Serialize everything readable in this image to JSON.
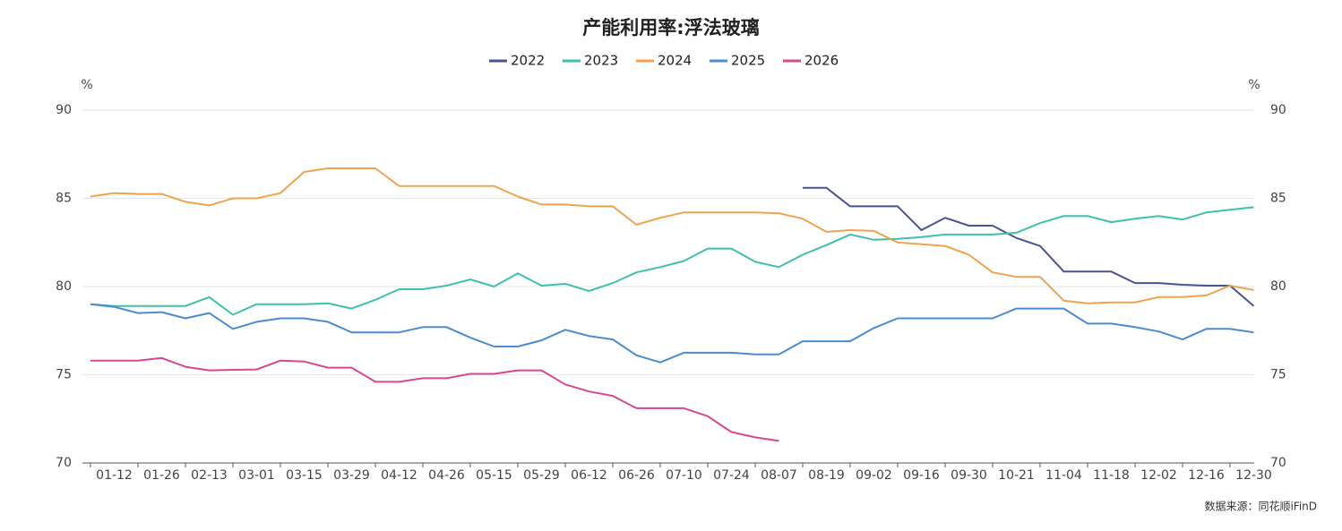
{
  "chart_data": {
    "type": "line",
    "title": "产能利用率:浮法玻璃",
    "y_unit": "%",
    "y2_unit": "%",
    "source": "数据来源：同花顺iFinD",
    "categories": [
      null,
      "01-12",
      null,
      "01-26",
      null,
      "02-13",
      null,
      "03-01",
      null,
      "03-15",
      null,
      "03-29",
      null,
      "04-12",
      null,
      "04-26",
      null,
      "05-15",
      null,
      "05-29",
      null,
      "06-12",
      null,
      "06-26",
      null,
      "07-10",
      null,
      "07-24",
      null,
      "08-07",
      null,
      "08-19",
      null,
      "09-02",
      null,
      "09-16",
      null,
      "09-30",
      null,
      "10-21",
      null,
      "11-04",
      null,
      "11-18",
      null,
      "12-02",
      null,
      "12-16",
      null,
      "12-30"
    ],
    "series": [
      {
        "name": "2022",
        "color": "#4a5391",
        "values": [
          null,
          null,
          null,
          null,
          null,
          null,
          null,
          null,
          null,
          null,
          null,
          null,
          null,
          null,
          null,
          null,
          null,
          null,
          null,
          null,
          null,
          null,
          null,
          null,
          null,
          null,
          null,
          null,
          null,
          null,
          85.6,
          85.6,
          84.55,
          84.55,
          84.55,
          83.2,
          83.9,
          83.45,
          83.45,
          82.75,
          82.3,
          80.85,
          80.85,
          80.85,
          80.2,
          80.2,
          80.1,
          80.05,
          80.05,
          78.9
        ]
      },
      {
        "name": "2023",
        "color": "#3fbfad",
        "values": [
          79.0,
          78.9,
          78.9,
          78.9,
          78.9,
          79.4,
          78.4,
          79.0,
          79.0,
          79.0,
          79.05,
          78.75,
          79.25,
          79.85,
          79.85,
          80.05,
          80.4,
          80.0,
          80.75,
          80.05,
          80.15,
          79.75,
          80.2,
          80.8,
          81.1,
          81.45,
          82.15,
          82.15,
          81.4,
          81.1,
          81.8,
          82.35,
          82.95,
          82.65,
          82.7,
          82.8,
          82.95,
          82.95,
          82.95,
          83.05,
          83.6,
          84.0,
          84.0,
          83.65,
          83.85,
          84.0,
          83.8,
          84.2,
          84.35,
          84.5
        ]
      },
      {
        "name": "2024",
        "color": "#f0a34e",
        "values": [
          85.1,
          85.3,
          85.25,
          85.25,
          84.8,
          84.6,
          85.0,
          85.0,
          85.3,
          86.5,
          86.7,
          86.7,
          86.7,
          85.7,
          85.7,
          85.7,
          85.7,
          85.7,
          85.1,
          84.65,
          84.65,
          84.55,
          84.55,
          83.5,
          83.9,
          84.2,
          84.2,
          84.2,
          84.2,
          84.15,
          83.85,
          83.1,
          83.2,
          83.15,
          82.5,
          82.4,
          82.3,
          81.8,
          80.8,
          80.55,
          80.55,
          79.2,
          79.05,
          79.1,
          79.1,
          79.4,
          79.4,
          79.5,
          80.05,
          79.8
        ]
      },
      {
        "name": "2025",
        "color": "#4a8ccf",
        "values": [
          79.0,
          78.85,
          78.5,
          78.55,
          78.2,
          78.5,
          77.6,
          78.0,
          78.2,
          78.2,
          78.0,
          77.4,
          77.4,
          77.4,
          77.7,
          77.7,
          77.1,
          76.6,
          76.6,
          76.95,
          77.55,
          77.2,
          77.0,
          76.1,
          75.7,
          76.25,
          76.25,
          76.25,
          76.15,
          76.15,
          76.9,
          76.9,
          76.9,
          77.65,
          78.2,
          78.2,
          78.2,
          78.2,
          78.2,
          78.75,
          78.75,
          78.75,
          77.9,
          77.9,
          77.7,
          77.45,
          77.0,
          77.6,
          77.6,
          77.4
        ]
      },
      {
        "name": "2026",
        "color": "#d9478f",
        "values": [
          75.8,
          75.8,
          75.8,
          75.95,
          75.45,
          75.25,
          75.28,
          75.3,
          75.8,
          75.75,
          75.4,
          75.4,
          74.6,
          74.6,
          74.8,
          74.8,
          75.05,
          75.05,
          75.25,
          75.25,
          74.45,
          74.05,
          73.8,
          73.1,
          73.1,
          73.1,
          72.65,
          71.75,
          71.45,
          71.25,
          null,
          null,
          null,
          null,
          null,
          null,
          null,
          null,
          null,
          null,
          null,
          null,
          null,
          null,
          null,
          null,
          null,
          null,
          null,
          null
        ]
      }
    ],
    "ylim": [
      70,
      90
    ],
    "yticks": [
      70,
      75,
      80,
      85,
      90
    ],
    "y2lim": [
      70,
      90
    ],
    "y2ticks": [
      70,
      75,
      80,
      85,
      90
    ],
    "grid": true,
    "legend": "top"
  }
}
